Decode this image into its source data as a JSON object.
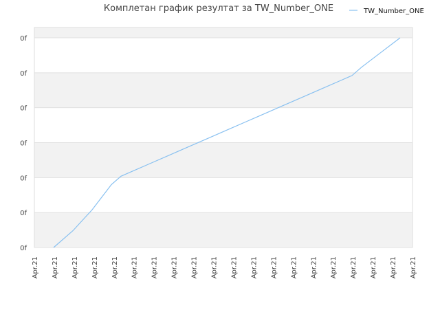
{
  "chart_data": {
    "type": "line",
    "title": "Комплетан график резултат за TW_Number_ONE",
    "legend_position": "top-right",
    "grid": true,
    "y_tick_labels": [
      "0f",
      "0f",
      "0f",
      "0f",
      "0f",
      "0f",
      "0f"
    ],
    "x_tick_labels": [
      "Apr.21",
      "Apr.21",
      "Apr.21",
      "Apr.21",
      "Apr.21",
      "Apr.21",
      "Apr.21",
      "Apr.21",
      "Apr.21",
      "Apr.21",
      "Apr.21",
      "Apr.21",
      "Apr.21",
      "Apr.21",
      "Apr.21",
      "Apr.21",
      "Apr.21",
      "Apr.21",
      "Apr.21",
      "Apr.21"
    ],
    "series": [
      {
        "name": "TW_Number_ONE",
        "color": "#88c0f0",
        "x": [
          1,
          2,
          3,
          4,
          4.5,
          5,
          6,
          7,
          8,
          9,
          10,
          11,
          12,
          13,
          14,
          15,
          16,
          16.5,
          17,
          18,
          19
        ],
        "y": [
          0,
          0.08,
          0.18,
          0.3,
          0.34,
          0.36,
          0.4,
          0.44,
          0.48,
          0.52,
          0.56,
          0.6,
          0.64,
          0.68,
          0.72,
          0.76,
          0.8,
          0.82,
          0.86,
          0.93,
          1.0
        ]
      }
    ],
    "xlim": [
      0,
      19
    ],
    "ylim": [
      0,
      1
    ]
  }
}
